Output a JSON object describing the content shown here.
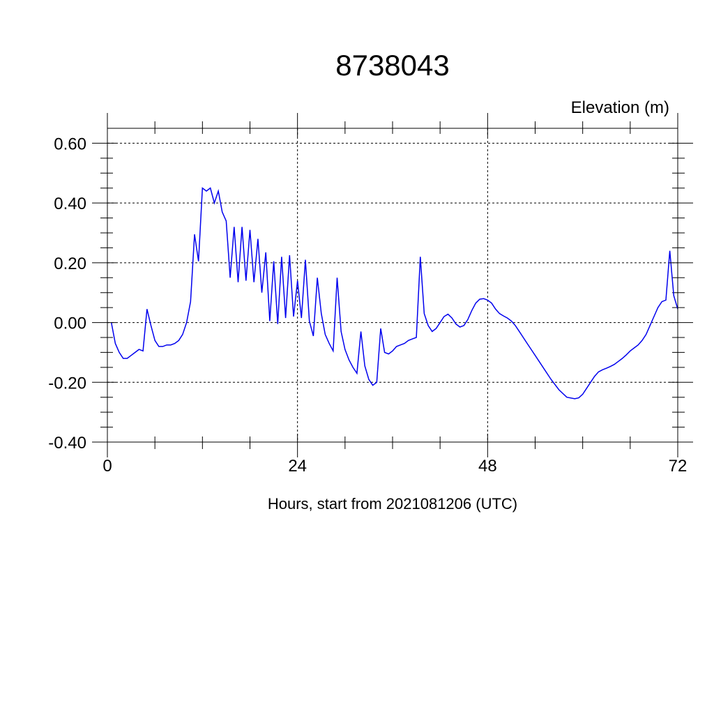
{
  "chart_data": {
    "type": "line",
    "title": "8738043",
    "ylabel": "Elevation (m)",
    "xlabel": "Hours, start from 2021081206 (UTC)",
    "xlim": [
      0,
      72
    ],
    "ylim": [
      -0.4,
      0.65
    ],
    "x_ticks": [
      0,
      24,
      48,
      72
    ],
    "x_tick_labels": [
      "0",
      "24",
      "48",
      "72"
    ],
    "y_ticks": [
      -0.4,
      -0.2,
      0.0,
      0.2,
      0.4,
      0.6
    ],
    "y_tick_labels": [
      "-0.40",
      "-0.20",
      "0.00",
      "0.20",
      "0.40",
      "0.60"
    ],
    "grid": true,
    "line_color": "#0000ee",
    "series": [
      {
        "x": [
          0.5,
          1.0,
          1.5,
          2.0,
          2.5,
          3.0,
          3.5,
          4.0,
          4.5,
          5.0,
          5.5,
          6.0,
          6.5,
          7.0,
          7.5,
          8.0,
          8.5,
          9.0,
          9.5,
          10.0,
          10.5,
          11.0,
          11.5,
          12.0,
          12.5,
          13.0,
          13.5,
          14.0,
          14.5,
          15.0,
          15.5,
          16.0,
          16.5,
          17.0,
          17.5,
          18.0,
          18.5,
          19.0,
          19.5,
          20.0,
          20.5,
          21.0,
          21.5,
          22.0,
          22.5,
          23.0,
          23.5,
          24.0,
          24.5,
          25.0,
          25.5,
          26.0,
          26.5,
          27.0,
          27.5,
          28.0,
          28.5,
          29.0,
          29.5,
          30.0,
          30.5,
          31.0,
          31.5,
          32.0,
          32.5,
          33.0,
          33.5,
          34.0,
          34.5,
          35.0,
          35.5,
          36.0,
          36.5,
          37.0,
          37.5,
          38.0,
          38.5,
          39.0,
          39.5,
          40.0,
          40.5,
          41.0,
          41.5,
          42.0,
          42.5,
          43.0,
          43.5,
          44.0,
          44.5,
          45.0,
          45.5,
          46.0,
          46.5,
          47.0,
          47.5,
          48.0,
          48.5,
          49.0,
          49.5,
          50.0,
          50.5,
          51.0,
          51.5,
          52.0,
          53.0,
          54.0,
          55.0,
          56.0,
          57.0,
          58.0,
          59.0,
          59.5,
          60.0,
          60.5,
          61.0,
          61.5,
          62.0,
          62.5,
          63.0,
          63.5,
          64.0,
          64.5,
          65.0,
          65.5,
          66.0,
          66.5,
          67.0,
          67.5,
          68.0,
          68.5,
          69.0,
          69.5,
          70.0,
          70.5,
          71.0,
          71.5,
          72.0
        ],
        "y": [
          0.0,
          -0.07,
          -0.1,
          -0.12,
          -0.12,
          -0.11,
          -0.1,
          -0.09,
          -0.095,
          0.045,
          -0.01,
          -0.06,
          -0.08,
          -0.08,
          -0.075,
          -0.075,
          -0.07,
          -0.06,
          -0.04,
          0.0,
          0.07,
          0.295,
          0.205,
          0.45,
          0.44,
          0.45,
          0.4,
          0.44,
          0.37,
          0.34,
          0.15,
          0.32,
          0.135,
          0.32,
          0.14,
          0.31,
          0.135,
          0.28,
          0.1,
          0.235,
          0.005,
          0.205,
          -0.005,
          0.22,
          0.015,
          0.225,
          0.02,
          0.14,
          0.015,
          0.21,
          0.005,
          -0.045,
          0.15,
          0.03,
          -0.04,
          -0.07,
          -0.095,
          0.15,
          -0.03,
          -0.09,
          -0.125,
          -0.15,
          -0.17,
          -0.03,
          -0.145,
          -0.19,
          -0.21,
          -0.2,
          -0.02,
          -0.1,
          -0.105,
          -0.095,
          -0.08,
          -0.075,
          -0.07,
          -0.06,
          -0.055,
          -0.05,
          0.22,
          0.03,
          -0.01,
          -0.03,
          -0.02,
          0.0,
          0.02,
          0.028,
          0.015,
          -0.005,
          -0.015,
          -0.01,
          0.01,
          0.04,
          0.065,
          0.078,
          0.08,
          0.075,
          0.065,
          0.045,
          0.03,
          0.022,
          0.015,
          0.005,
          -0.01,
          -0.03,
          -0.07,
          -0.11,
          -0.15,
          -0.19,
          -0.225,
          -0.25,
          -0.255,
          -0.252,
          -0.24,
          -0.22,
          -0.2,
          -0.18,
          -0.165,
          -0.158,
          -0.153,
          -0.147,
          -0.14,
          -0.13,
          -0.12,
          -0.108,
          -0.095,
          -0.085,
          -0.075,
          -0.06,
          -0.04,
          -0.01,
          0.02,
          0.05,
          0.07,
          0.075,
          0.24,
          0.09,
          0.045
        ]
      }
    ]
  }
}
